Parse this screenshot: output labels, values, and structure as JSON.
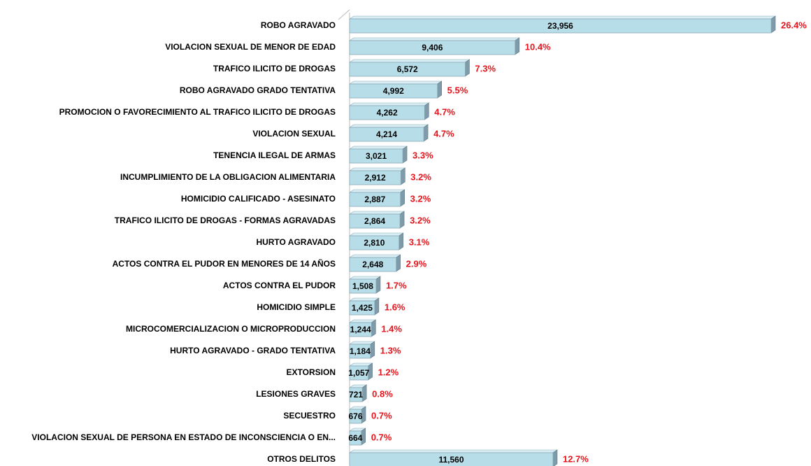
{
  "chart_data": {
    "type": "bar",
    "orientation": "horizontal",
    "color": "#b7dee8",
    "categories": [
      "ROBO AGRAVADO",
      "VIOLACION SEXUAL DE MENOR DE EDAD",
      "TRAFICO ILICITO DE DROGAS",
      "ROBO AGRAVADO GRADO TENTATIVA",
      "PROMOCION O FAVORECIMIENTO AL TRAFICO ILICITO DE DROGAS",
      "VIOLACION SEXUAL",
      "TENENCIA ILEGAL DE ARMAS",
      "INCUMPLIMIENTO DE LA OBLIGACION ALIMENTARIA",
      "HOMICIDIO CALIFICADO - ASESINATO",
      "TRAFICO ILICITO DE DROGAS - FORMAS AGRAVADAS",
      "HURTO AGRAVADO",
      "ACTOS CONTRA EL PUDOR EN MENORES DE 14 AÑOS",
      "ACTOS CONTRA EL PUDOR",
      "HOMICIDIO SIMPLE",
      "MICROCOMERCIALIZACION O MICROPRODUCCION",
      "HURTO AGRAVADO - GRADO TENTATIVA",
      "EXTORSION",
      "LESIONES GRAVES",
      "SECUESTRO",
      "VIOLACION SEXUAL DE PERSONA EN ESTADO DE INCONSCIENCIA O EN...",
      "OTROS DELITOS"
    ],
    "values": [
      23956,
      9406,
      6572,
      4992,
      4262,
      4214,
      3021,
      2912,
      2887,
      2864,
      2810,
      2648,
      1508,
      1425,
      1244,
      1184,
      1057,
      721,
      676,
      664,
      11560
    ],
    "value_labels": [
      "23,956",
      "9,406",
      "6,572",
      "4,992",
      "4,262",
      "4,214",
      "3,021",
      "2,912",
      "2,887",
      "2,864",
      "2,810",
      "2,648",
      "1,508",
      "1,425",
      "1,244",
      "1,184",
      "1,057",
      "721",
      "676",
      "664",
      "11,560"
    ],
    "percentages": [
      26.4,
      10.4,
      7.3,
      5.5,
      4.7,
      4.7,
      3.3,
      3.2,
      3.2,
      3.2,
      3.1,
      2.9,
      1.7,
      1.6,
      1.4,
      1.3,
      1.2,
      0.8,
      0.7,
      0.7,
      12.7
    ],
    "percentage_labels": [
      "26.4%",
      "10.4%",
      "7.3%",
      "5.5%",
      "4.7%",
      "4.7%",
      "3.3%",
      "3.2%",
      "3.2%",
      "3.2%",
      "3.1%",
      "2.9%",
      "1.7%",
      "1.6%",
      "1.4%",
      "1.3%",
      "1.2%",
      "0.8%",
      "0.7%",
      "0.7%",
      "12.7%"
    ]
  }
}
